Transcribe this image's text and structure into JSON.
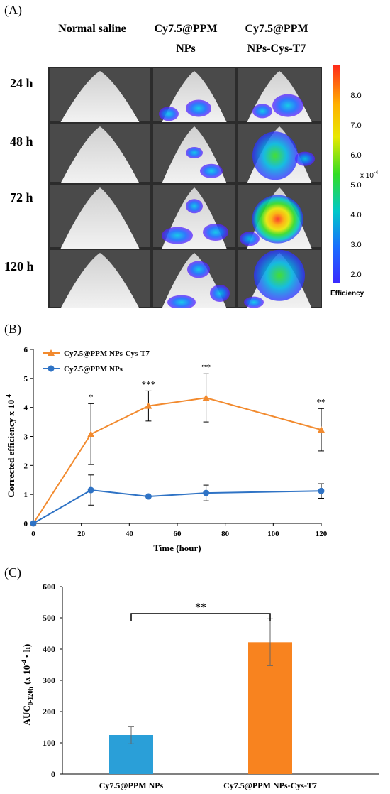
{
  "panel_a": {
    "label": "(A)",
    "columns": [
      {
        "line1": "Normal saline",
        "line2": ""
      },
      {
        "line1": "Cy7.5@PPM",
        "line2": "NPs"
      },
      {
        "line1": "Cy7.5@PPM",
        "line2": "NPs-Cys-T7"
      }
    ],
    "rows": [
      "24 h",
      "48 h",
      "72 h",
      "120 h"
    ],
    "colorbar": {
      "ticks": [
        "8.0",
        "7.0",
        "6.0",
        "5.0",
        "4.0",
        "3.0",
        "2.0"
      ],
      "unit": "x 10",
      "unit_exp": "-4",
      "label": "Efficiency",
      "colors": [
        "#ff2a1a",
        "#ffb000",
        "#e8e800",
        "#33dd22",
        "#00c8c8",
        "#1a6cff",
        "#2f2fff"
      ]
    }
  },
  "panel_b": {
    "label": "(B)"
  },
  "panel_c": {
    "label": "(C)"
  },
  "chart_data": [
    {
      "type": "line",
      "xlabel": "Time (hour)",
      "ylabel": "Corrected efficiency x 10",
      "ylabel_exp": "-4",
      "xlim": [
        0,
        120
      ],
      "ylim": [
        0,
        6
      ],
      "xticks": [
        0,
        20,
        40,
        60,
        80,
        100,
        120
      ],
      "yticks": [
        0,
        1,
        2,
        3,
        4,
        5,
        6
      ],
      "legend_position": "top-left",
      "grid": false,
      "series": [
        {
          "name": "Cy7.5@PPM NPs-Cys-T7",
          "color": "#f28a2e",
          "marker": "triangle",
          "x": [
            0,
            24,
            48,
            72,
            120
          ],
          "y": [
            0,
            3.08,
            4.05,
            4.33,
            3.23
          ],
          "err": [
            0,
            1.05,
            0.52,
            0.83,
            0.73
          ],
          "sig": [
            "",
            "*",
            "***",
            "**",
            "**"
          ]
        },
        {
          "name": "Cy7.5@PPM NPs",
          "color": "#2f73c5",
          "marker": "circle",
          "x": [
            0,
            24,
            48,
            72,
            120
          ],
          "y": [
            0,
            1.15,
            0.93,
            1.05,
            1.12
          ],
          "err": [
            0,
            0.52,
            0.0,
            0.27,
            0.25
          ]
        }
      ]
    },
    {
      "type": "bar",
      "ylabel": "AUC",
      "ylabel_sub": "0-120h",
      "ylabel_rest": " (x 10",
      "ylabel_exp": "-4",
      "ylabel_end": " • h)",
      "ylim": [
        0,
        600
      ],
      "yticks": [
        0,
        100,
        200,
        300,
        400,
        500,
        600
      ],
      "grid": false,
      "categories": [
        "Cy7.5@PPM NPs",
        "Cy7.5@PPM NPs-Cys-T7"
      ],
      "values": [
        125,
        422
      ],
      "errors": [
        28,
        75
      ],
      "colors": [
        "#2a9fd8",
        "#f8831f"
      ],
      "significance": "**"
    }
  ]
}
